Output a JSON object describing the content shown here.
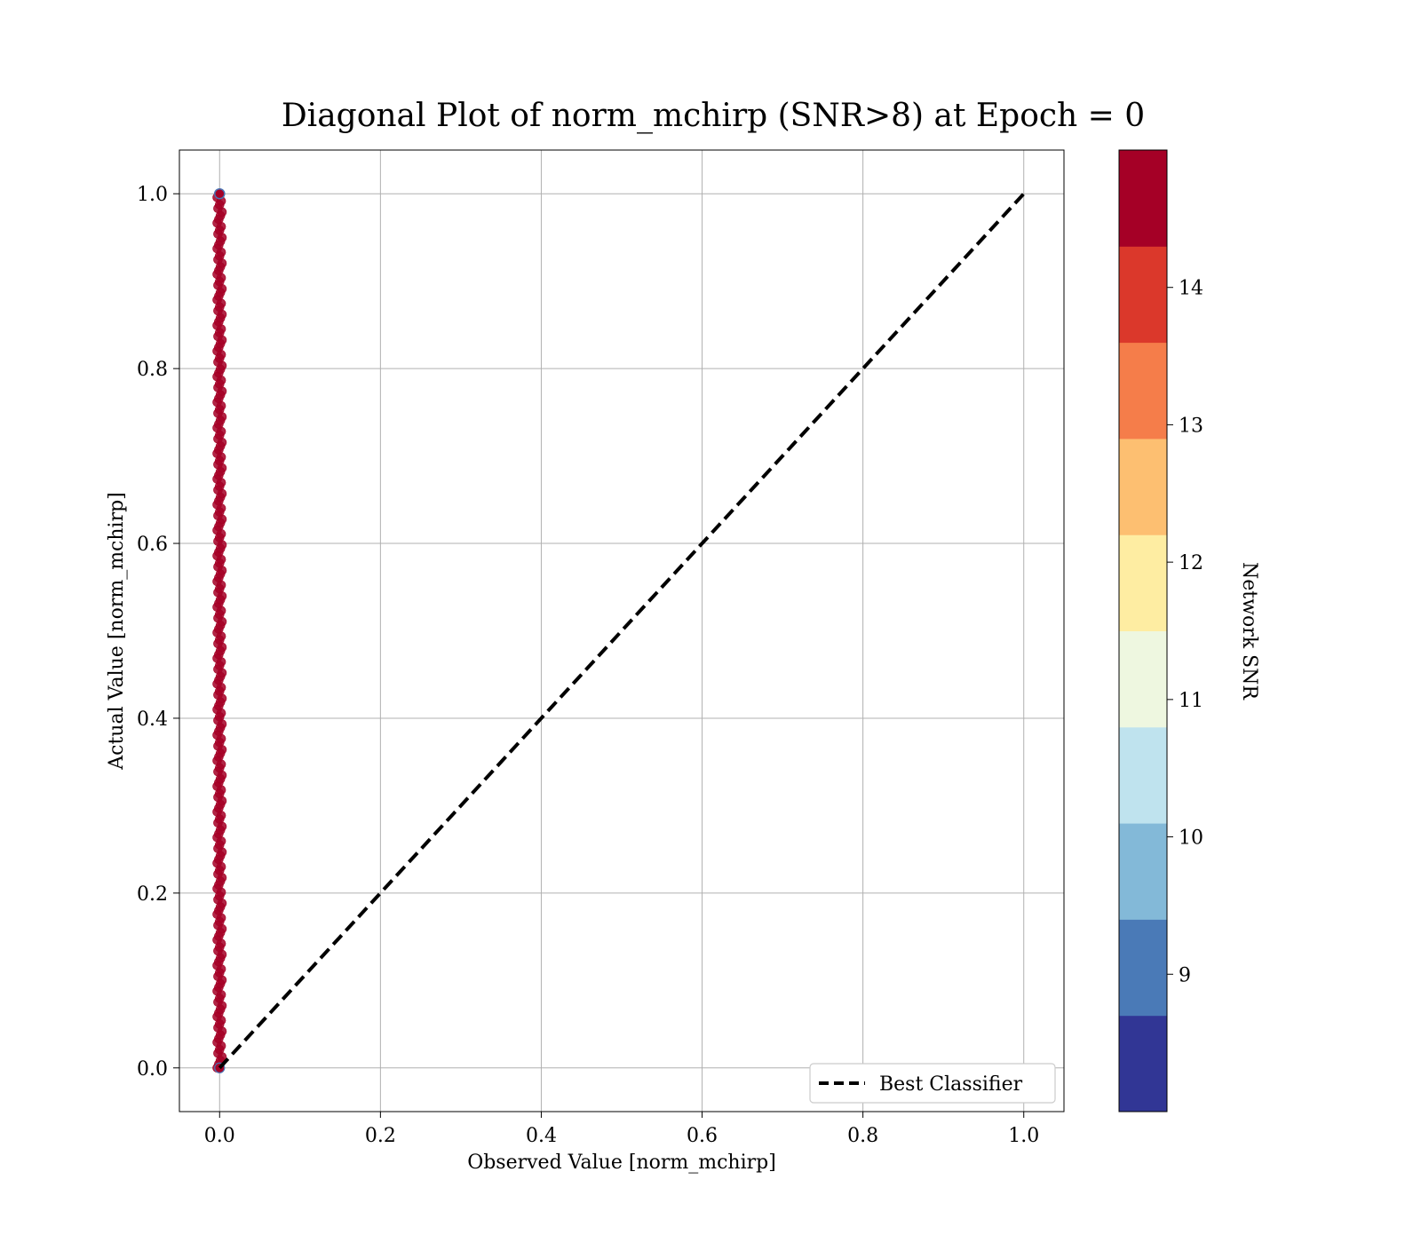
{
  "chart_data": {
    "type": "scatter",
    "title": "Diagonal Plot of norm_mchirp (SNR>8) at Epoch = 0",
    "xlabel": "Observed Value [norm_mchirp]",
    "ylabel": "Actual Value [norm_mchirp]",
    "xlim": [
      -0.05,
      1.05
    ],
    "ylim": [
      -0.05,
      1.05
    ],
    "xticks": [
      0.0,
      0.2,
      0.4,
      0.6,
      0.8,
      1.0
    ],
    "xtick_labels": [
      "0.0",
      "0.2",
      "0.4",
      "0.6",
      "0.8",
      "1.0"
    ],
    "yticks": [
      0.0,
      0.2,
      0.4,
      0.6,
      0.8,
      1.0
    ],
    "ytick_labels": [
      "0.0",
      "0.2",
      "0.4",
      "0.6",
      "0.8",
      "1.0"
    ],
    "grid": true,
    "scatter": {
      "x_value": 0.0,
      "y_range": [
        0.0,
        1.0
      ],
      "color": "#a50026",
      "edge_color": "#4a74b4",
      "description": "dense column of points at observed value 0 spanning actual 0 to 1"
    },
    "reference_line": {
      "name": "Best Classifier",
      "x": [
        0.0,
        1.0
      ],
      "y": [
        0.0,
        1.0
      ],
      "style": "dashed",
      "color": "#000000"
    },
    "legend": {
      "placement": "lower-right",
      "entries": [
        "Best Classifier"
      ]
    },
    "colorbar": {
      "label": "Network SNR",
      "range": [
        8.0,
        15.0
      ],
      "ticks": [
        9,
        10,
        11,
        12,
        13,
        14
      ],
      "tick_labels": [
        "9",
        "10",
        "11",
        "12",
        "13",
        "14"
      ],
      "colors": [
        "#313695",
        "#4575b4",
        "#74add1",
        "#abd9e9",
        "#e0f3f8",
        "#ffffbf",
        "#fee090",
        "#fdae61",
        "#f46d43",
        "#d73027",
        "#a50026"
      ],
      "segments": [
        {
          "from": 8.0,
          "to": 8.7,
          "color": "#313695"
        },
        {
          "from": 8.7,
          "to": 9.4,
          "color": "#4a7ab7"
        },
        {
          "from": 9.4,
          "to": 10.1,
          "color": "#83b9d8"
        },
        {
          "from": 10.1,
          "to": 10.8,
          "color": "#bfe3ee"
        },
        {
          "from": 10.8,
          "to": 11.5,
          "color": "#eef7e0"
        },
        {
          "from": 11.5,
          "to": 12.2,
          "color": "#feeda2"
        },
        {
          "from": 12.2,
          "to": 12.9,
          "color": "#fdbf71"
        },
        {
          "from": 12.9,
          "to": 13.6,
          "color": "#f57d4a"
        },
        {
          "from": 13.6,
          "to": 14.3,
          "color": "#db382b"
        },
        {
          "from": 14.3,
          "to": 15.0,
          "color": "#a50026"
        }
      ]
    }
  }
}
